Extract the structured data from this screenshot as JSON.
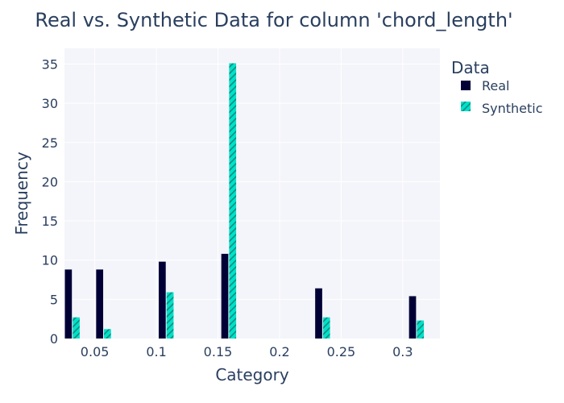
{
  "chart_data": {
    "type": "bar",
    "title": "Real vs. Synthetic Data for column 'chord_length'",
    "xlabel": "Category",
    "ylabel": "Frequency",
    "x": [
      0.0254,
      0.0508,
      0.1016,
      0.1524,
      0.2286,
      0.3048
    ],
    "series": [
      {
        "name": "Real",
        "color": "#000036",
        "pattern": "none",
        "values": [
          8.8,
          8.8,
          9.8,
          10.8,
          6.4,
          5.4
        ]
      },
      {
        "name": "Synthetic",
        "color": "#01e0c9",
        "pattern": "diagonal-hatch",
        "values": [
          2.7,
          1.2,
          5.9,
          35.1,
          2.7,
          2.3
        ]
      }
    ],
    "xlim": [
      0.0254,
      0.3302
    ],
    "ylim": [
      0,
      37
    ],
    "xticks": [
      0.05,
      0.1,
      0.15,
      0.2,
      0.25,
      0.3
    ],
    "xtick_labels": [
      "0.05",
      "0.1",
      "0.15",
      "0.2",
      "0.25",
      "0.3"
    ],
    "yticks": [
      0,
      5,
      10,
      15,
      20,
      25,
      30,
      35
    ],
    "ytick_labels": [
      "0",
      "5",
      "10",
      "15",
      "20",
      "25",
      "30",
      "35"
    ],
    "grid": true,
    "plot_background": "#f4f5fa",
    "legend": {
      "title": "Data",
      "placement": "top-right outside"
    }
  }
}
